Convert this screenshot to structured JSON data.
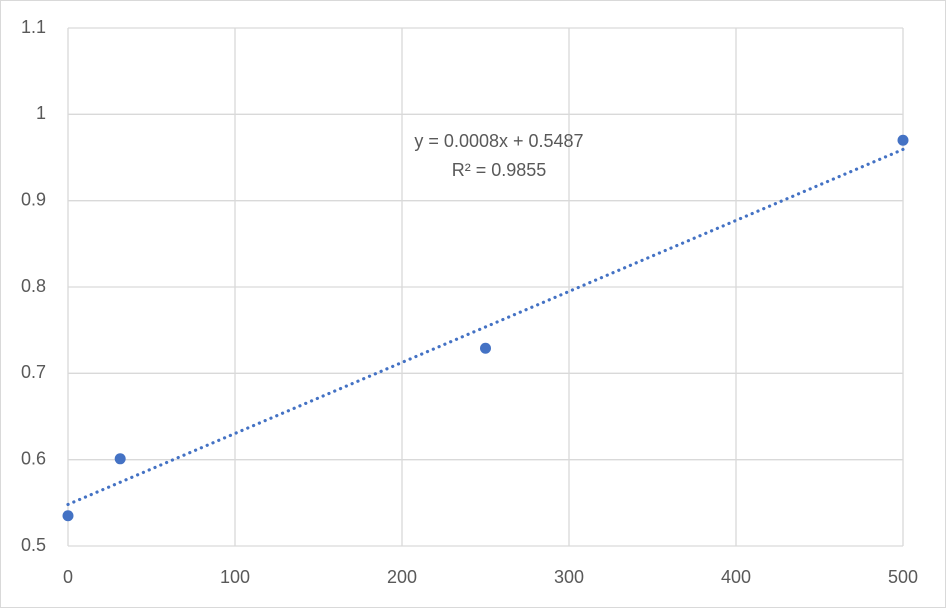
{
  "chart_data": {
    "type": "scatter",
    "x": [
      0,
      31.25,
      250,
      500
    ],
    "values": [
      0.535,
      0.601,
      0.729,
      0.97
    ],
    "color": "#4472c4",
    "xlim": [
      0,
      500
    ],
    "xticks": [
      0,
      100,
      200,
      300,
      400,
      500
    ],
    "ylim": [
      0.5,
      1.1
    ],
    "yticks": [
      0.5,
      0.6,
      0.7,
      0.8,
      0.9,
      1,
      1.1
    ],
    "grid": true,
    "trendline": {
      "type": "linear",
      "equation": "y = 0.0008x + 0.5487",
      "r_squared": "R² = 0.9855"
    }
  }
}
